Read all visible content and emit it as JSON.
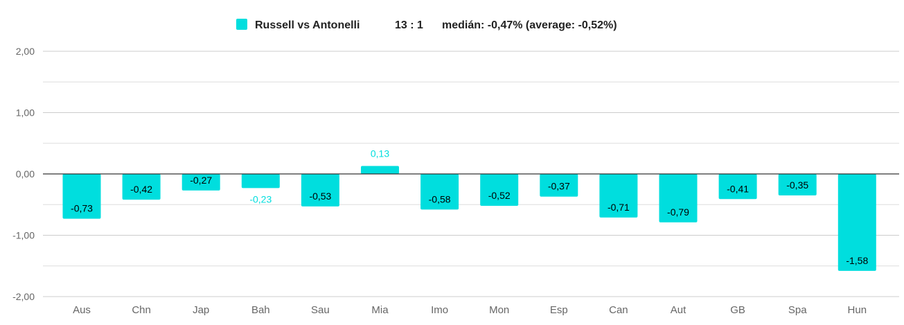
{
  "chart_data": {
    "type": "bar",
    "colors": {
      "bar": "#00dede",
      "label_outside": "#00dede",
      "label_inside": "#000000",
      "grid": "#dddddd",
      "zero_line": "#333333"
    },
    "legend": {
      "series_name": "Russell vs Antonelli",
      "score": "13 : 1",
      "stats": "medián: -0,47% (average: -0,52%)"
    },
    "ylim": [
      -2,
      2
    ],
    "y_ticks": [
      {
        "value": 2,
        "label": "2,00"
      },
      {
        "value": 1,
        "label": "1,00"
      },
      {
        "value": 0,
        "label": "0,00"
      },
      {
        "value": -1,
        "label": "-1,00"
      },
      {
        "value": -2,
        "label": "-2,00"
      }
    ],
    "grid_minor": [
      1.5,
      0.5,
      -0.5,
      -1.5
    ],
    "categories": [
      "Aus",
      "Chn",
      "Jap",
      "Bah",
      "Sau",
      "Mia",
      "Imo",
      "Mon",
      "Esp",
      "Can",
      "Aut",
      "GB",
      "Spa",
      "Hun"
    ],
    "series": [
      {
        "name": "Russell vs Antonelli",
        "values": [
          -0.73,
          -0.42,
          -0.27,
          -0.23,
          -0.53,
          0.13,
          -0.58,
          -0.52,
          -0.37,
          -0.71,
          -0.79,
          -0.41,
          -0.35,
          -1.58
        ],
        "labels": [
          "-0,73",
          "-0,42",
          "-0,27",
          "-0,23",
          "-0,53",
          "0,13",
          "-0,58",
          "-0,52",
          "-0,37",
          "-0,71",
          "-0,79",
          "-0,41",
          "-0,35",
          "-1,58"
        ],
        "label_outside": [
          false,
          false,
          false,
          true,
          false,
          true,
          false,
          false,
          false,
          false,
          false,
          false,
          false,
          false
        ]
      }
    ]
  }
}
